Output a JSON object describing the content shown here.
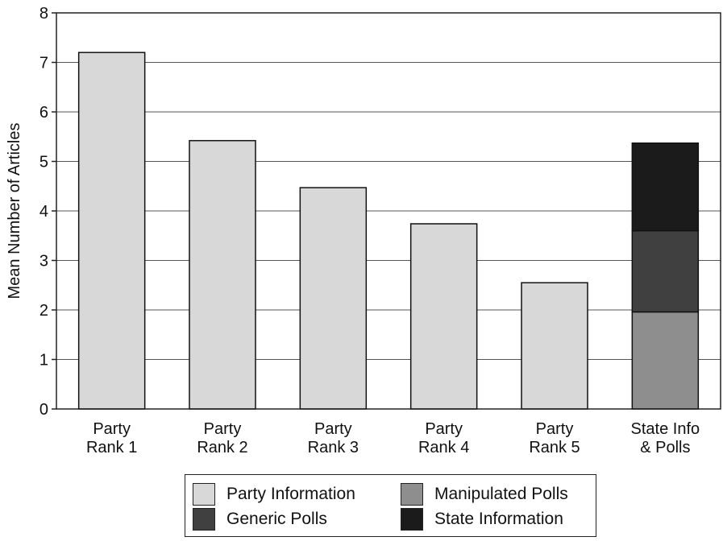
{
  "chart_data": {
    "type": "bar",
    "stacked": true,
    "title": "",
    "xlabel": "",
    "ylabel": "Mean Number of Articles",
    "ylim": [
      0,
      8
    ],
    "yticks": [
      "0",
      "1",
      "2",
      "3",
      "4",
      "5",
      "6",
      "7",
      "8"
    ],
    "grid": true,
    "legend_position": "bottom",
    "categories": [
      [
        "Party",
        "Rank 1"
      ],
      [
        "Party",
        "Rank 2"
      ],
      [
        "Party",
        "Rank 3"
      ],
      [
        "Party",
        "Rank 4"
      ],
      [
        "Party",
        "Rank 5"
      ],
      [
        "State Info",
        "& Polls"
      ]
    ],
    "series": [
      {
        "name": "Party Information",
        "color": "#d8d8d8",
        "values": [
          7.2,
          5.42,
          4.47,
          3.74,
          2.55,
          0
        ]
      },
      {
        "name": "Manipulated Polls",
        "color": "#8e8e8e",
        "values": [
          0,
          0,
          0,
          0,
          0,
          1.96
        ]
      },
      {
        "name": "Generic Polls",
        "color": "#404040",
        "values": [
          0,
          0,
          0,
          0,
          0,
          1.64
        ]
      },
      {
        "name": "State Information",
        "color": "#1b1b1b",
        "values": [
          0,
          0,
          0,
          0,
          0,
          1.77
        ]
      }
    ],
    "legend": [
      {
        "label": "Party Information",
        "color": "#d8d8d8"
      },
      {
        "label": "Manipulated Polls",
        "color": "#8e8e8e"
      },
      {
        "label": "Generic Polls",
        "color": "#404040"
      },
      {
        "label": "State Information",
        "color": "#1b1b1b"
      }
    ]
  }
}
